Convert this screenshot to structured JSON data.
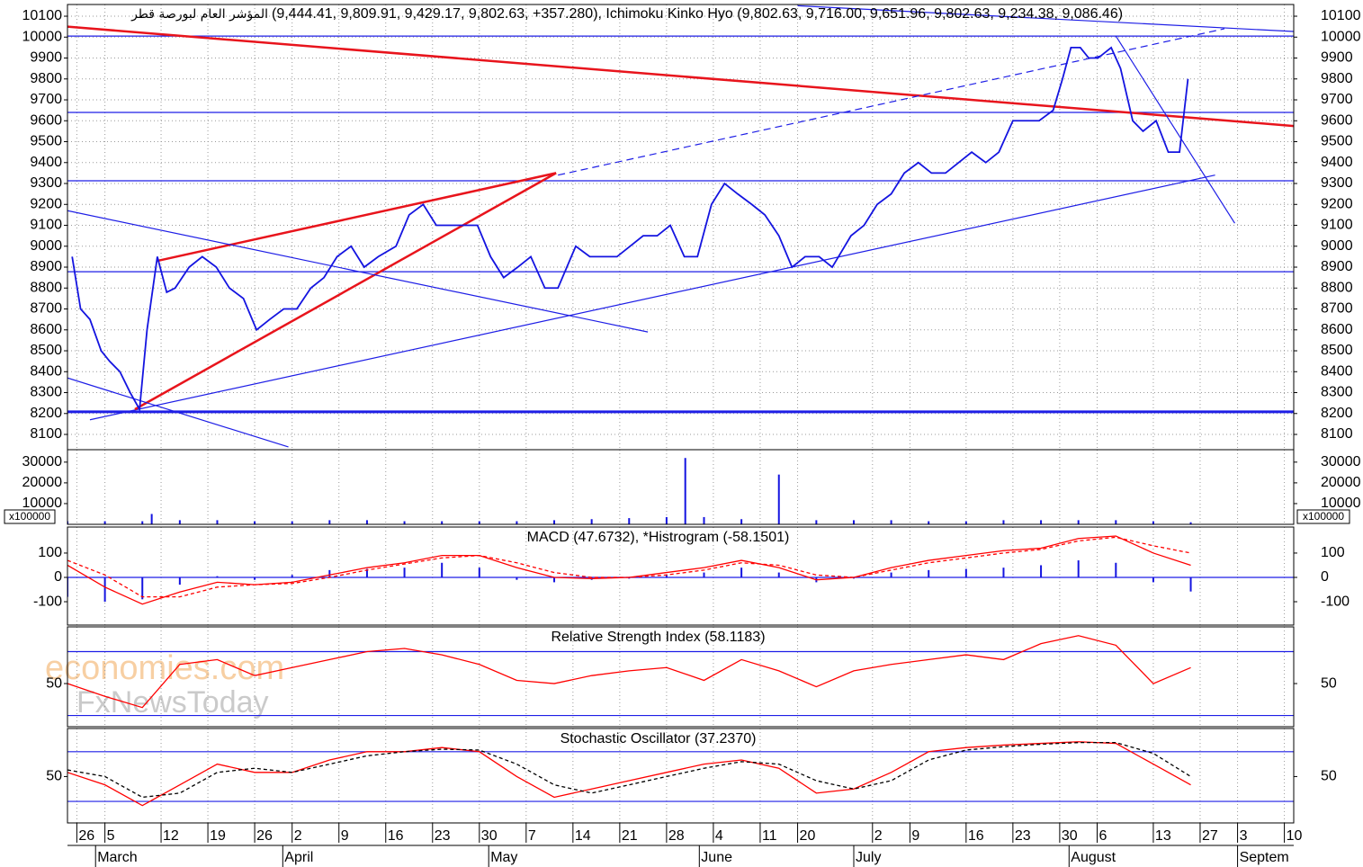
{
  "watermark": [
    "economies.com",
    "FxNewsToday"
  ],
  "chart_data": [
    {
      "type": "line",
      "name": "المؤشر العام لبورصة قطر",
      "title": "(9,444.41, 9,809.91, 9,429.17, 9,802.63, +357.280), Ichimoku Kinko Hyo (9,802.63, 9,716.00, 9,651.96, 9,802.63, 9,234.38, 9,086.46)",
      "xlim": [
        0,
        131
      ],
      "ylim": [
        8027,
        10156
      ],
      "yticks": [
        8100,
        8200,
        8300,
        8400,
        8500,
        8600,
        8700,
        8800,
        8900,
        9000,
        9100,
        9200,
        9300,
        9400,
        9500,
        9600,
        9700,
        9800,
        9900,
        10000,
        10100
      ],
      "grid": true,
      "levels": [
        10005,
        9640,
        9313,
        8878,
        8208
      ],
      "level_color": "#1e1ee6",
      "trendlines": [
        {
          "x": [
            0,
            131
          ],
          "values": [
            10050,
            9575
          ],
          "color": "#e8141c"
        },
        {
          "x": [
            2.4,
            122.6
          ],
          "values": [
            8170,
            9340
          ],
          "color": "#1e1ee6"
        },
        {
          "x": [
            52.4,
            123.6
          ],
          "values": [
            9340,
            10040
          ],
          "color": "#1e1ee6",
          "dashed": true
        },
        {
          "x": [
            7.2,
            52.2
          ],
          "values": [
            8220,
            9350
          ],
          "color": "#e8141c"
        },
        {
          "x": [
            9.6,
            52.2
          ],
          "values": [
            8930,
            9350
          ],
          "color": "#e8141c"
        },
        {
          "x": [
            0,
            62
          ],
          "values": [
            9170,
            8590
          ],
          "color": "#1e1ee6"
        },
        {
          "x": [
            0,
            23.6
          ],
          "values": [
            8370,
            8040
          ],
          "color": "#1e1ee6"
        },
        {
          "x": [
            78,
            131
          ],
          "values": [
            10150,
            10027
          ],
          "color": "#1e1ee6"
        },
        {
          "x": [
            112,
            124.7
          ],
          "values": [
            10005,
            9110
          ],
          "color": "#1e1ee6"
        }
      ],
      "series": [
        {
          "color": "#1414e0",
          "x": [
            0.5,
            1.4,
            2.4,
            3.6,
            4.5,
            5.6,
            6.7,
            7.7,
            8.5,
            9.6,
            10.6,
            11.5,
            13,
            14.4,
            15.9,
            17.3,
            18.8,
            20.2,
            21.6,
            23.1,
            24.5,
            26,
            27.4,
            28.8,
            30.3,
            31.7,
            33.2,
            35.1,
            36.5,
            38,
            39.4,
            40.9,
            42.3,
            43.8,
            45.2,
            46.6,
            48.1,
            49.5,
            51,
            52.4,
            54.3,
            55.8,
            57.2,
            58.7,
            60.1,
            61.5,
            63,
            64.4,
            65.9,
            67.3,
            68.8,
            70.2,
            71.6,
            73.1,
            74.5,
            76,
            77.4,
            78.8,
            80.3,
            81.7,
            83.7,
            85.1,
            86.5,
            88,
            89.4,
            90.9,
            92.3,
            93.8,
            95.2,
            96.6,
            98.1,
            99.5,
            101,
            102.4,
            103.8,
            105.3,
            106.3,
            107.2,
            108.2,
            109.1,
            110.1,
            111.5,
            112.5,
            113.8,
            114.9,
            116.3,
            117.6,
            118.8,
            119.7
          ],
          "values": [
            8950,
            8700,
            8650,
            8500,
            8450,
            8400,
            8300,
            8220,
            8600,
            8950,
            8780,
            8800,
            8900,
            8950,
            8900,
            8800,
            8750,
            8600,
            8650,
            8700,
            8700,
            8800,
            8850,
            8950,
            9000,
            8900,
            8950,
            9000,
            9150,
            9200,
            9100,
            9100,
            9100,
            9100,
            8950,
            8850,
            8900,
            8950,
            8800,
            8800,
            9000,
            8950,
            8950,
            8950,
            9000,
            9050,
            9050,
            9100,
            8950,
            8950,
            9200,
            9300,
            9250,
            9200,
            9150,
            9050,
            8900,
            8950,
            8950,
            8900,
            9050,
            9100,
            9200,
            9250,
            9350,
            9400,
            9350,
            9350,
            9400,
            9450,
            9400,
            9450,
            9600,
            9600,
            9600,
            9650,
            9800,
            9950,
            9950,
            9900,
            9900,
            9950,
            9850,
            9600,
            9550,
            9600,
            9450,
            9450,
            9800
          ]
        }
      ]
    },
    {
      "type": "bar",
      "xlim": [
        0,
        131
      ],
      "ylim": [
        0,
        36000
      ],
      "yticks": [
        10000,
        20000,
        30000
      ],
      "unit_label": "x100000",
      "series": [
        {
          "color": "#1414e0",
          "x": [
            0,
            4,
            8,
            9,
            12,
            16,
            20,
            24,
            28,
            32,
            36,
            40,
            44,
            48,
            52,
            56,
            60,
            64,
            66,
            68,
            72,
            76,
            80,
            84,
            88,
            92,
            96,
            100,
            104,
            108,
            112,
            116,
            120
          ],
          "values": [
            1500,
            1500,
            1500,
            5000,
            2000,
            2000,
            1500,
            1500,
            2000,
            2000,
            1500,
            1500,
            1500,
            1500,
            2000,
            2500,
            3000,
            3500,
            32000,
            3500,
            2500,
            24000,
            2000,
            2000,
            2000,
            1500,
            1500,
            2000,
            2000,
            2000,
            2000,
            1500,
            1000
          ]
        }
      ]
    },
    {
      "type": "line",
      "title": "MACD (47.6732), *Histrogram (-58.1501)",
      "xlim": [
        0,
        131
      ],
      "ylim": [
        -196,
        207
      ],
      "yticks": [
        -100,
        0,
        100
      ],
      "levels": [
        0
      ],
      "level_color": "#1e1ee6",
      "series": [
        {
          "type": "bar",
          "color": "#1414e0",
          "x": [
            0,
            4,
            8,
            12,
            16,
            20,
            24,
            28,
            32,
            36,
            40,
            44,
            48,
            52,
            56,
            60,
            64,
            68,
            72,
            76,
            80,
            84,
            88,
            92,
            96,
            100,
            104,
            108,
            112,
            116,
            120
          ],
          "values": [
            -80,
            -100,
            -90,
            -30,
            5,
            -10,
            10,
            30,
            35,
            40,
            60,
            40,
            -10,
            -20,
            -10,
            -5,
            10,
            20,
            40,
            20,
            -20,
            -5,
            20,
            30,
            35,
            40,
            50,
            70,
            60,
            -20,
            -58
          ]
        },
        {
          "color": "#ff0000",
          "x": [
            0,
            4,
            8,
            12,
            16,
            20,
            24,
            28,
            32,
            36,
            40,
            44,
            48,
            52,
            56,
            60,
            64,
            68,
            72,
            76,
            80,
            84,
            88,
            92,
            96,
            100,
            104,
            108,
            112,
            116,
            120
          ],
          "values": [
            50,
            -40,
            -110,
            -60,
            -20,
            -30,
            -20,
            10,
            40,
            60,
            90,
            90,
            40,
            0,
            -5,
            0,
            20,
            40,
            70,
            40,
            -10,
            0,
            40,
            70,
            90,
            110,
            120,
            160,
            170,
            100,
            50
          ]
        },
        {
          "color": "#ff0000",
          "dashed": true,
          "x": [
            0,
            4,
            8,
            12,
            16,
            20,
            24,
            28,
            32,
            36,
            40,
            44,
            48,
            52,
            56,
            60,
            64,
            68,
            72,
            76,
            80,
            84,
            88,
            92,
            96,
            100,
            104,
            108,
            112,
            116,
            120
          ],
          "values": [
            70,
            10,
            -80,
            -80,
            -40,
            -30,
            -25,
            0,
            30,
            55,
            80,
            90,
            60,
            20,
            0,
            0,
            10,
            30,
            60,
            50,
            10,
            0,
            30,
            60,
            80,
            100,
            115,
            150,
            165,
            130,
            100
          ]
        }
      ]
    },
    {
      "type": "line",
      "title": "Relative Strength Index (58.1183)",
      "xlim": [
        0,
        131
      ],
      "ylim": [
        23,
        85.5
      ],
      "yticks": [
        50
      ],
      "levels": [
        30,
        70
      ],
      "level_color": "#1e1ee6",
      "series": [
        {
          "color": "#ff0000",
          "x": [
            0,
            4,
            8,
            12,
            16,
            20,
            24,
            28,
            32,
            36,
            40,
            44,
            48,
            52,
            56,
            60,
            64,
            68,
            72,
            76,
            80,
            84,
            88,
            92,
            96,
            100,
            104,
            108,
            112,
            116,
            120
          ],
          "values": [
            50,
            42,
            35,
            62,
            65,
            55,
            60,
            65,
            70,
            72,
            68,
            62,
            52,
            50,
            55,
            58,
            60,
            52,
            65,
            58,
            48,
            58,
            62,
            65,
            68,
            65,
            75,
            80,
            74,
            50,
            60
          ]
        }
      ]
    },
    {
      "type": "line",
      "title": "Stochastic Oscillator (37.2370)",
      "xlim": [
        0,
        131
      ],
      "ylim": [
        -6,
        108
      ],
      "yticks": [
        50
      ],
      "levels": [
        20,
        80
      ],
      "level_color": "#1e1ee6",
      "series": [
        {
          "color": "#ff0000",
          "x": [
            0,
            4,
            8,
            12,
            16,
            20,
            24,
            28,
            32,
            36,
            40,
            44,
            48,
            52,
            56,
            60,
            64,
            68,
            72,
            76,
            80,
            84,
            88,
            92,
            96,
            100,
            104,
            108,
            112,
            116,
            120
          ],
          "values": [
            55,
            40,
            15,
            40,
            65,
            55,
            55,
            70,
            80,
            80,
            85,
            80,
            50,
            25,
            35,
            45,
            55,
            65,
            70,
            60,
            30,
            35,
            55,
            80,
            85,
            88,
            90,
            92,
            90,
            65,
            40
          ]
        },
        {
          "color": "#000000",
          "dashed": true,
          "x": [
            0,
            4,
            8,
            12,
            16,
            20,
            24,
            28,
            32,
            36,
            40,
            44,
            48,
            52,
            56,
            60,
            64,
            68,
            72,
            76,
            80,
            84,
            88,
            92,
            96,
            100,
            104,
            108,
            112,
            116,
            120
          ],
          "values": [
            58,
            50,
            25,
            30,
            55,
            60,
            55,
            65,
            75,
            80,
            83,
            82,
            65,
            40,
            30,
            40,
            50,
            60,
            68,
            65,
            45,
            35,
            45,
            70,
            82,
            86,
            89,
            91,
            91,
            78,
            50
          ]
        }
      ],
      "xticks": [
        {
          "value": 1,
          "label": "26"
        },
        {
          "value": 4,
          "label": "5"
        },
        {
          "value": 10,
          "label": "12"
        },
        {
          "value": 15,
          "label": "19"
        },
        {
          "value": 20,
          "label": "26"
        },
        {
          "value": 24,
          "label": "2"
        },
        {
          "value": 29,
          "label": "9"
        },
        {
          "value": 34,
          "label": "16"
        },
        {
          "value": 39,
          "label": "23"
        },
        {
          "value": 44,
          "label": "30"
        },
        {
          "value": 49,
          "label": "7"
        },
        {
          "value": 54,
          "label": "14"
        },
        {
          "value": 59,
          "label": "21"
        },
        {
          "value": 64,
          "label": "28"
        },
        {
          "value": 69,
          "label": "4"
        },
        {
          "value": 74,
          "label": "11"
        },
        {
          "value": 78,
          "label": "20"
        },
        {
          "value": 86,
          "label": "2"
        },
        {
          "value": 90,
          "label": "9"
        },
        {
          "value": 96,
          "label": "16"
        },
        {
          "value": 101,
          "label": "23"
        },
        {
          "value": 106,
          "label": "30"
        },
        {
          "value": 110,
          "label": "6"
        },
        {
          "value": 116,
          "label": "13"
        },
        {
          "value": 121,
          "label": "27"
        },
        {
          "value": 125,
          "label": "3"
        },
        {
          "value": 130,
          "label": "10"
        }
      ],
      "months": [
        {
          "value": 3,
          "label": "March"
        },
        {
          "value": 23,
          "label": "April"
        },
        {
          "value": 45,
          "label": "May"
        },
        {
          "value": 67.5,
          "label": "June"
        },
        {
          "value": 84,
          "label": "July"
        },
        {
          "value": 107,
          "label": "August"
        },
        {
          "value": 125,
          "label": "Septem"
        }
      ]
    }
  ]
}
